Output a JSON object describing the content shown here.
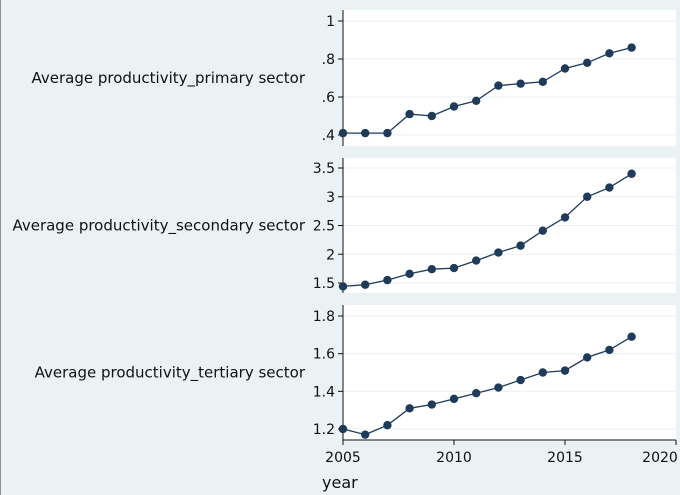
{
  "chart_data": {
    "type": "line",
    "x": [
      2005,
      2006,
      2007,
      2008,
      2009,
      2010,
      2011,
      2012,
      2013,
      2014,
      2015,
      2016,
      2017,
      2018
    ],
    "xlabel": "year",
    "xlim": [
      2005,
      2020
    ],
    "xticks": [
      2005,
      2010,
      2015,
      2020
    ],
    "line_color": "#1f3b5a",
    "marker_color": "#1f3b5a",
    "grid_color": "#eaf2f3",
    "background": "#eaf2f3",
    "panels": [
      {
        "ylabel": "Average productivity_primary sector",
        "ylim": [
          0.4,
          1.0
        ],
        "yticks": [
          0.4,
          0.6,
          0.8,
          1.0
        ],
        "yticklabels": [
          ".4",
          ".6",
          ".8",
          "1"
        ],
        "values": [
          0.41,
          0.41,
          0.41,
          0.51,
          0.5,
          0.55,
          0.58,
          0.66,
          0.67,
          0.68,
          0.75,
          0.78,
          0.83,
          0.86
        ]
      },
      {
        "ylabel": "Average productivity_secondary sector",
        "ylim": [
          1.5,
          3.5
        ],
        "yticks": [
          1.5,
          2.0,
          2.5,
          3.0,
          3.5
        ],
        "yticklabels": [
          "1.5",
          "2",
          "2.5",
          "3",
          "3.5"
        ],
        "values": [
          1.44,
          1.47,
          1.55,
          1.66,
          1.74,
          1.76,
          1.89,
          2.03,
          2.15,
          2.41,
          2.64,
          3.0,
          3.16,
          3.4
        ]
      },
      {
        "ylabel": "Average productivity_tertiary sector",
        "ylim": [
          1.2,
          1.8
        ],
        "yticks": [
          1.2,
          1.4,
          1.6,
          1.8
        ],
        "yticklabels": [
          "1.2",
          "1.4",
          "1.6",
          "1.8"
        ],
        "values": [
          1.2,
          1.17,
          1.22,
          1.31,
          1.33,
          1.36,
          1.39,
          1.42,
          1.46,
          1.5,
          1.51,
          1.58,
          1.62,
          1.69
        ]
      }
    ]
  }
}
